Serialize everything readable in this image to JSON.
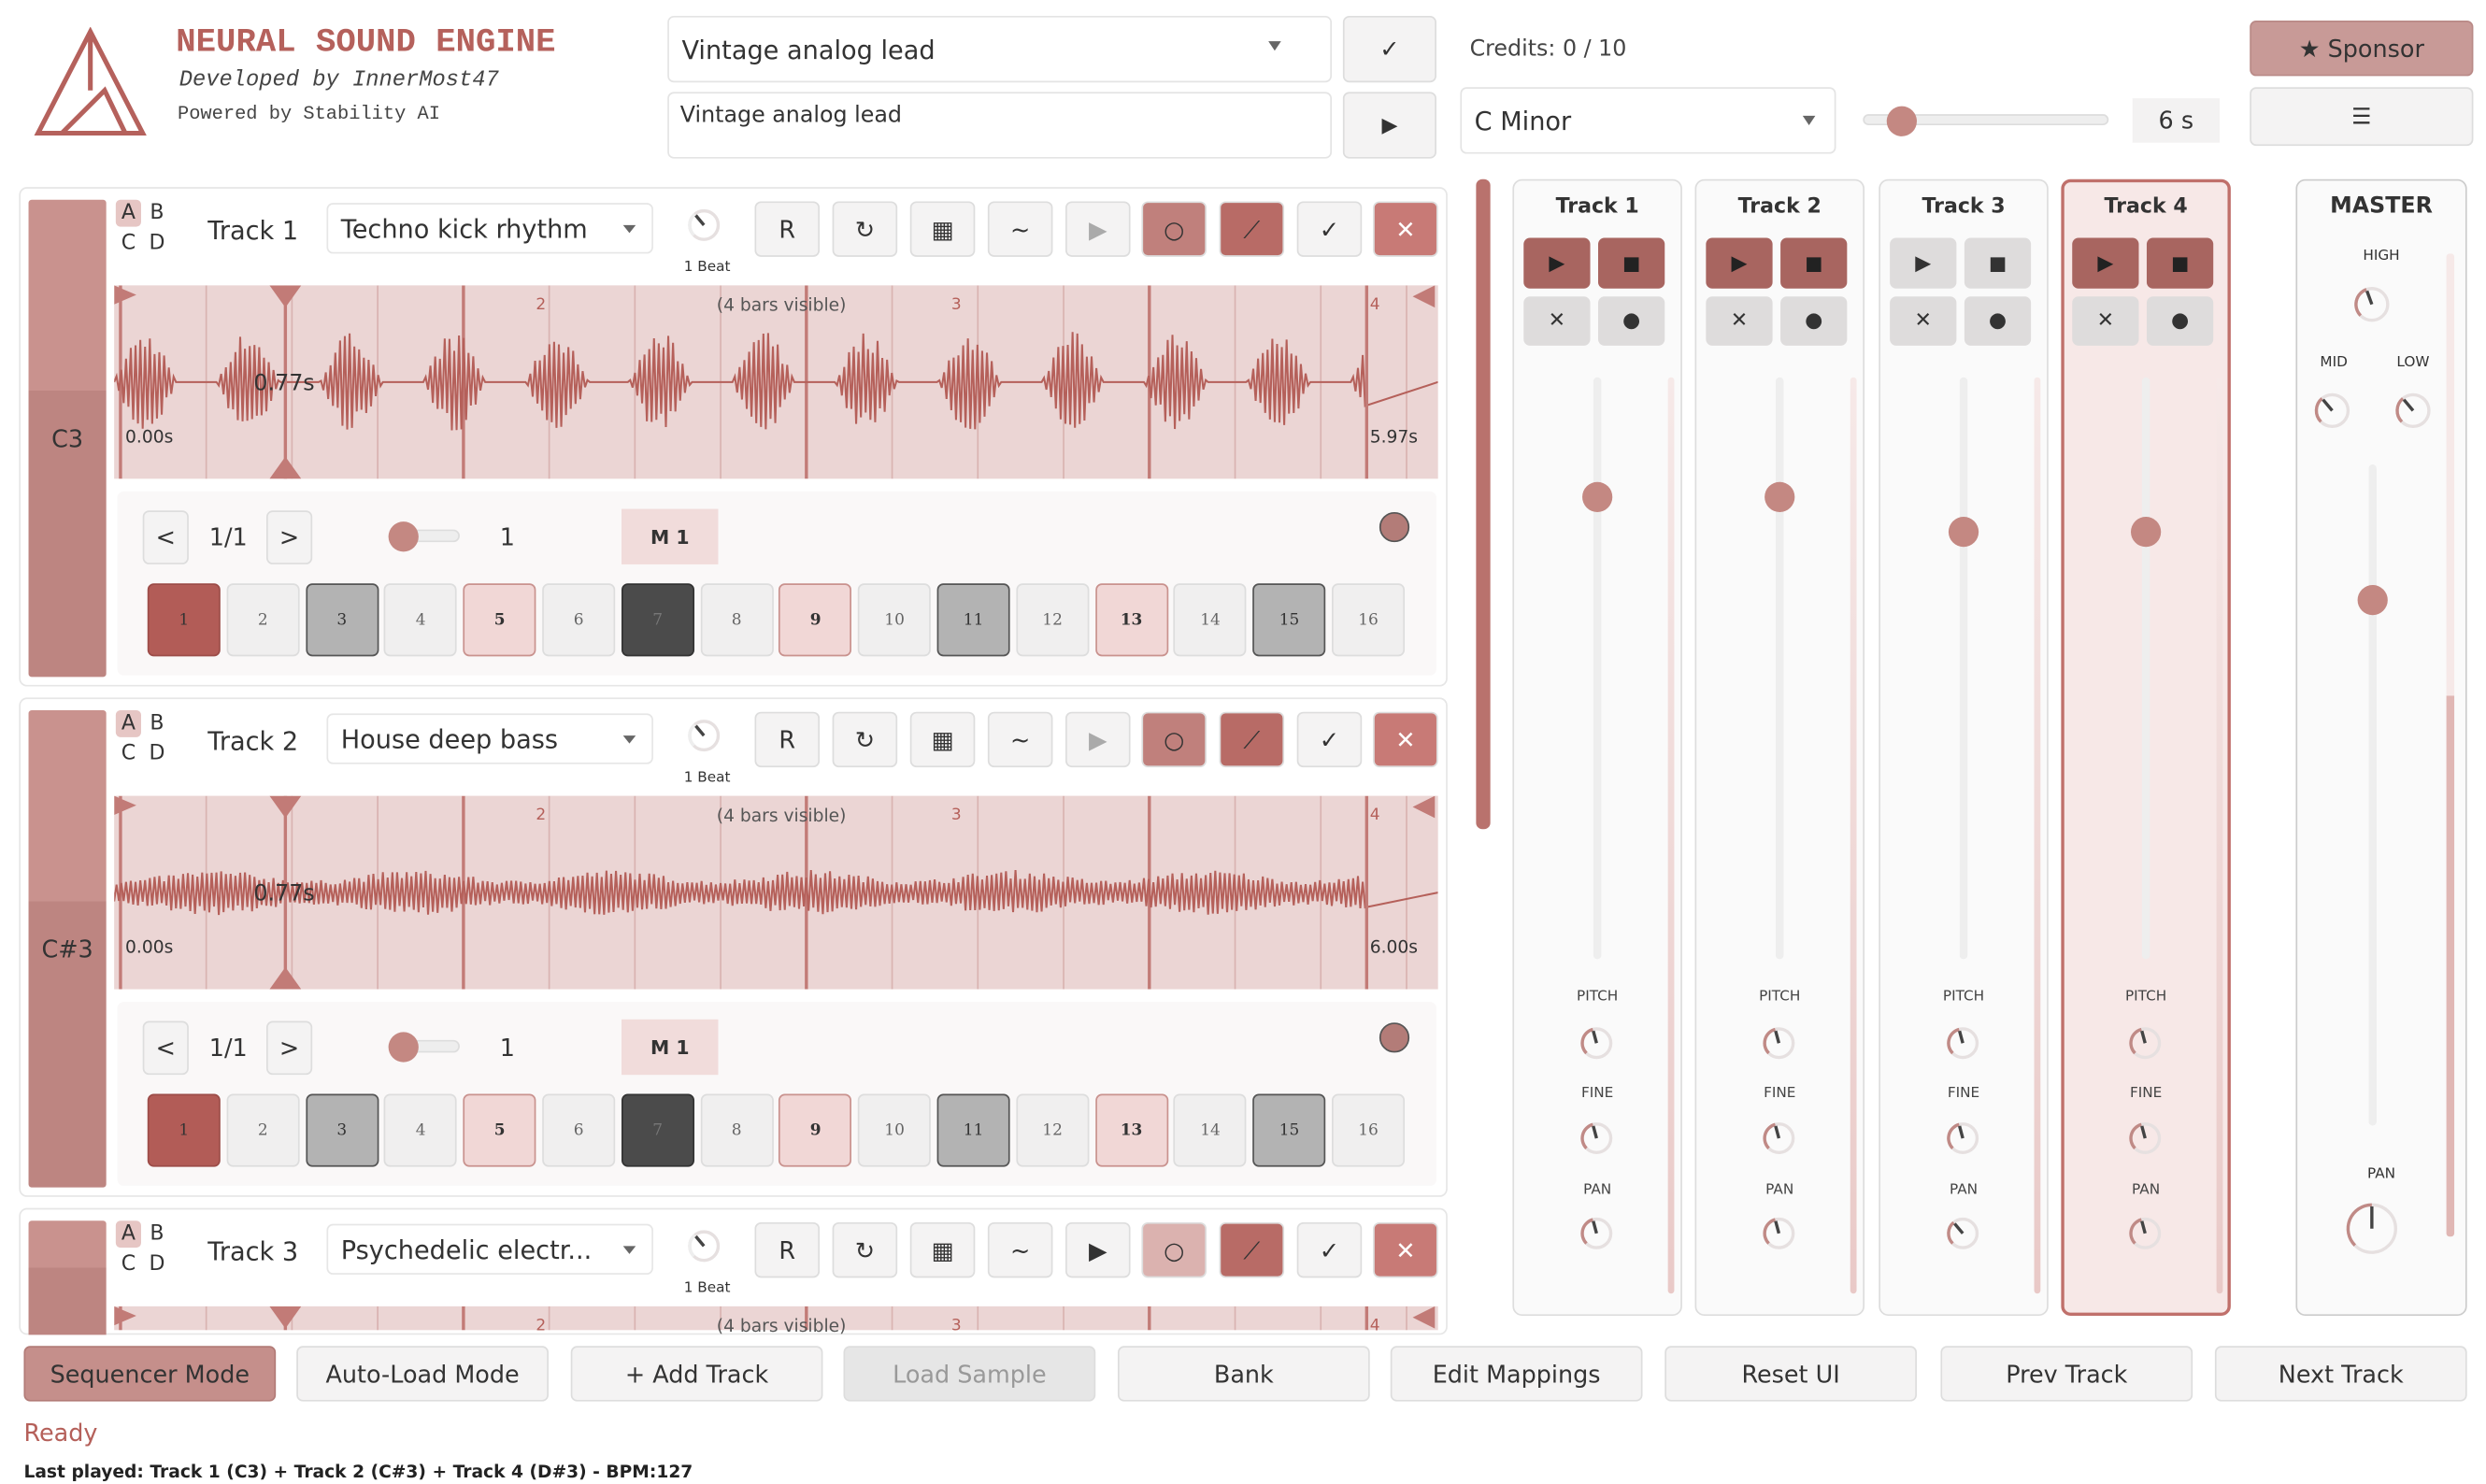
{
  "header": {
    "title": "NEURAL SOUND ENGINE",
    "developer": "Developed by InnerMost47",
    "powered": "Powered by Stability AI"
  },
  "prompt": {
    "select": "Vintage analog lead",
    "confirm": "✓",
    "text": "Vintage analog lead",
    "play": "▶"
  },
  "credits": "Credits: 0 / 10",
  "key": "C Minor",
  "duration": "6 s",
  "sponsor": "★ Sponsor",
  "menu": "☰",
  "track_buttons": [
    "R",
    "↻",
    "▦",
    "~",
    "▶",
    "○",
    "⟋",
    "✓",
    "✕"
  ],
  "slots": [
    "A",
    "B",
    "C",
    "D"
  ],
  "tracks": [
    {
      "note": "C3",
      "name": "Track 1",
      "preset": "Techno kick rhythm",
      "beat": "1 Beat",
      "bars_label": "(4 bars visible)",
      "bar_numbers": [
        "2",
        "3",
        "4"
      ],
      "cursor": "0.77s",
      "start": "0.00s",
      "end": "5.97s",
      "prev": "<",
      "page": "1/1",
      "next": ">",
      "slider_value": "1",
      "mode": "M 1",
      "steps": [
        "1",
        "2",
        "3",
        "4",
        "5",
        "6",
        "7",
        "8",
        "9",
        "10",
        "11",
        "12",
        "13",
        "14",
        "15",
        "16"
      ]
    },
    {
      "note": "C#3",
      "name": "Track 2",
      "preset": "House deep bass",
      "beat": "1 Beat",
      "bars_label": "(4 bars visible)",
      "bar_numbers": [
        "2",
        "3",
        "4"
      ],
      "cursor": "0.77s",
      "start": "0.00s",
      "end": "6.00s",
      "prev": "<",
      "page": "1/1",
      "next": ">",
      "slider_value": "1",
      "mode": "M 1",
      "steps": [
        "1",
        "2",
        "3",
        "4",
        "5",
        "6",
        "7",
        "8",
        "9",
        "10",
        "11",
        "12",
        "13",
        "14",
        "15",
        "16"
      ]
    },
    {
      "name": "Track 3",
      "preset": "Psychedelic electr...",
      "beat": "1 Beat",
      "bars_label": "(4 bars visible)",
      "bar_numbers": [
        "2",
        "3",
        "4"
      ]
    }
  ],
  "mixer": {
    "button_icons": [
      "▶",
      "■",
      "✕",
      "●"
    ],
    "knob_labels": [
      "PITCH",
      "FINE",
      "PAN"
    ],
    "channels": [
      "Track 1",
      "Track 2",
      "Track 3",
      "Track 4"
    ],
    "master": {
      "name": "MASTER",
      "high": "HIGH",
      "mid": "MID",
      "low": "LOW",
      "pan": "PAN"
    }
  },
  "footer": {
    "buttons": [
      "Sequencer Mode",
      "Auto-Load Mode",
      "+ Add Track",
      "Load Sample",
      "Bank",
      "Edit Mappings",
      "Reset UI",
      "Prev Track",
      "Next Track"
    ],
    "status": "Ready",
    "last_played": "Last played: Track 1 (C3) + Track 2 (C#3) + Track 4 (D#3) - BPM:127"
  }
}
